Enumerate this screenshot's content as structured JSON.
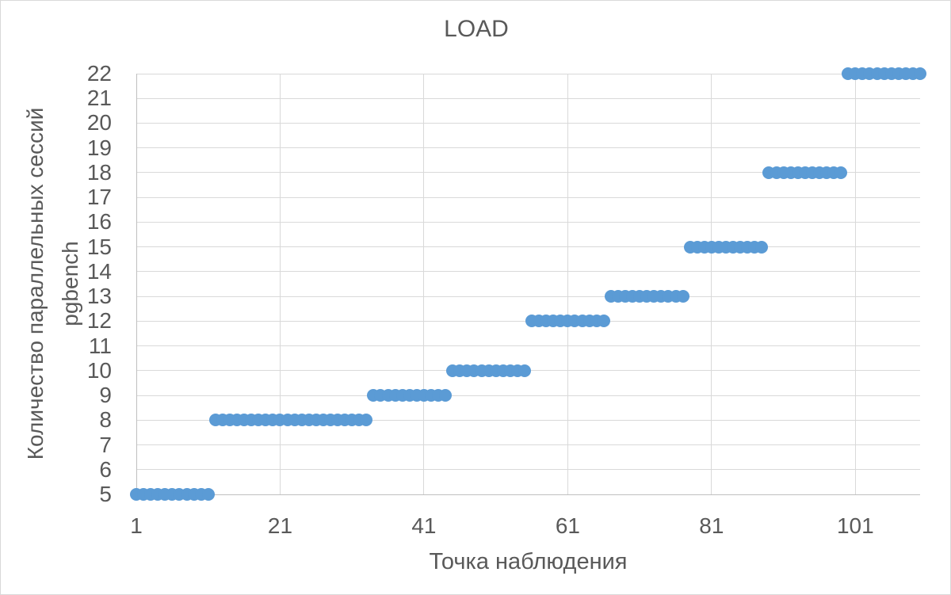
{
  "chart": {
    "title": "LOAD",
    "x_axis": {
      "label": "Точка наблюдения",
      "ticks": [
        "1",
        "21",
        "41",
        "61",
        "81",
        "101"
      ],
      "tick_values": [
        1,
        21,
        41,
        61,
        81,
        101
      ]
    },
    "y_axis": {
      "label_lines": [
        "Количество параллельных сессий",
        "pgbench"
      ],
      "ticks": [
        "22",
        "21",
        "20",
        "19",
        "18",
        "17",
        "16",
        "15",
        "14",
        "13",
        "12",
        "11",
        "10",
        "9",
        "8",
        "7",
        "6",
        "5"
      ],
      "tick_values": [
        22,
        21,
        20,
        19,
        18,
        17,
        16,
        15,
        14,
        13,
        12,
        11,
        10,
        9,
        8,
        7,
        6,
        5
      ]
    },
    "colors": {
      "marker": "#5b9bd5",
      "gridline": "#d9d9d9",
      "axis_line": "#bfbfbf",
      "text": "#595959",
      "background": "#ffffff",
      "border": "#d9d9d9"
    }
  },
  "chart_data": {
    "type": "scatter",
    "title": "LOAD",
    "xlabel": "Точка наблюдения",
    "ylabel": "Количество параллельных сессий pgbench",
    "xlim": [
      1,
      110
    ],
    "ylim": [
      5,
      22
    ],
    "x_step": 1,
    "grid": "on",
    "legend": "none",
    "segments": [
      {
        "x_from": 1,
        "x_to": 11,
        "y": 5
      },
      {
        "x_from": 12,
        "x_to": 33,
        "y": 8
      },
      {
        "x_from": 34,
        "x_to": 44,
        "y": 9
      },
      {
        "x_from": 45,
        "x_to": 55,
        "y": 10
      },
      {
        "x_from": 56,
        "x_to": 66,
        "y": 12
      },
      {
        "x_from": 67,
        "x_to": 77,
        "y": 13
      },
      {
        "x_from": 78,
        "x_to": 88,
        "y": 15
      },
      {
        "x_from": 89,
        "x_to": 99,
        "y": 18
      },
      {
        "x_from": 100,
        "x_to": 110,
        "y": 22
      }
    ]
  }
}
